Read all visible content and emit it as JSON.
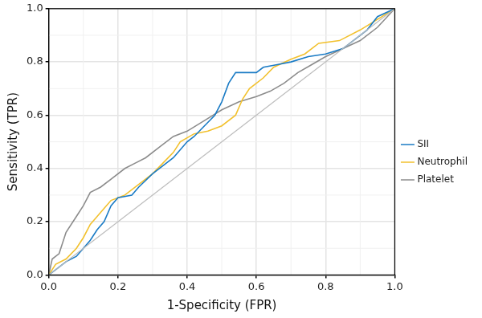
{
  "chart_data": {
    "type": "line",
    "x_label": "1-Specificity (FPR)",
    "y_label": "Sensitivity (TPR)",
    "xlim": [
      0,
      1
    ],
    "ylim": [
      0,
      1
    ],
    "xticks": [
      {
        "value": 0,
        "label": "0.0"
      },
      0.2,
      0.4,
      0.6,
      0.8,
      {
        "value": 1,
        "label": "1.0"
      }
    ],
    "yticks": [
      {
        "value": 0,
        "label": "0.0"
      },
      0.2,
      0.4,
      0.6,
      0.8,
      {
        "value": 1,
        "label": "1.0"
      }
    ],
    "grid": true,
    "legend": "right",
    "series": [
      {
        "name": "SII",
        "color": "#1a7bc5",
        "x": [
          0,
          0.02,
          0.05,
          0.08,
          0.1,
          0.12,
          0.14,
          0.16,
          0.18,
          0.2,
          0.24,
          0.26,
          0.3,
          0.33,
          0.36,
          0.4,
          0.42,
          0.45,
          0.48,
          0.5,
          0.52,
          0.54,
          0.6,
          0.62,
          0.66,
          0.7,
          0.75,
          0.8,
          0.85,
          0.88,
          0.92,
          0.95,
          1.0
        ],
        "values": [
          0,
          0.02,
          0.05,
          0.07,
          0.1,
          0.13,
          0.17,
          0.2,
          0.26,
          0.29,
          0.3,
          0.33,
          0.38,
          0.41,
          0.44,
          0.5,
          0.52,
          0.56,
          0.6,
          0.65,
          0.72,
          0.76,
          0.76,
          0.78,
          0.79,
          0.8,
          0.82,
          0.83,
          0.85,
          0.88,
          0.92,
          0.97,
          1.0
        ]
      },
      {
        "name": "Neutrophil",
        "color": "#f2c12e",
        "x": [
          0,
          0.02,
          0.05,
          0.08,
          0.1,
          0.12,
          0.14,
          0.16,
          0.18,
          0.22,
          0.26,
          0.3,
          0.33,
          0.36,
          0.38,
          0.42,
          0.46,
          0.5,
          0.54,
          0.56,
          0.58,
          0.62,
          0.65,
          0.7,
          0.74,
          0.78,
          0.84,
          0.9,
          0.95,
          1.0
        ],
        "values": [
          0,
          0.04,
          0.06,
          0.1,
          0.14,
          0.19,
          0.22,
          0.25,
          0.28,
          0.3,
          0.34,
          0.38,
          0.42,
          0.46,
          0.5,
          0.53,
          0.54,
          0.56,
          0.6,
          0.66,
          0.7,
          0.74,
          0.78,
          0.81,
          0.83,
          0.87,
          0.88,
          0.92,
          0.96,
          1.0
        ]
      },
      {
        "name": "Platelet",
        "color": "#8c8c8c",
        "x": [
          0,
          0.01,
          0.03,
          0.05,
          0.08,
          0.1,
          0.12,
          0.15,
          0.18,
          0.22,
          0.25,
          0.28,
          0.32,
          0.36,
          0.4,
          0.45,
          0.5,
          0.55,
          0.6,
          0.64,
          0.68,
          0.72,
          0.76,
          0.8,
          0.85,
          0.9,
          0.95,
          1.0
        ],
        "values": [
          0,
          0.06,
          0.08,
          0.16,
          0.22,
          0.26,
          0.31,
          0.33,
          0.36,
          0.4,
          0.42,
          0.44,
          0.48,
          0.52,
          0.54,
          0.58,
          0.62,
          0.65,
          0.67,
          0.69,
          0.72,
          0.76,
          0.79,
          0.82,
          0.85,
          0.88,
          0.93,
          1.0
        ]
      }
    ],
    "diagonal": {
      "x": [
        0,
        1
      ],
      "values": [
        0,
        1
      ],
      "color": "#bdbdbd"
    }
  }
}
